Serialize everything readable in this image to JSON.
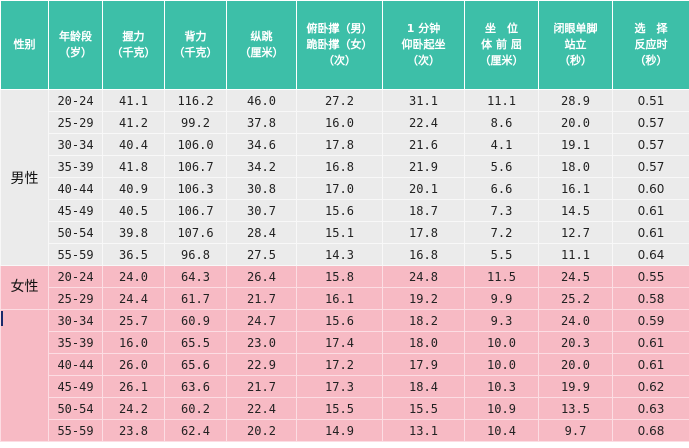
{
  "headers": [
    [
      "性别"
    ],
    [
      "年龄段",
      "（岁）"
    ],
    [
      "握力",
      "（千克）"
    ],
    [
      "背力",
      "（千克）"
    ],
    [
      "纵跳",
      "（厘米）"
    ],
    [
      "俯卧撑（男）",
      "跪卧撑（女）",
      "（次）"
    ],
    [
      "1 分钟",
      "仰卧起坐",
      "（次）"
    ],
    [
      "坐　位",
      "体 前 屈",
      "（厘米）"
    ],
    [
      "闭眼单脚",
      "站立",
      "（秒）"
    ],
    [
      "选　择",
      "反应时",
      "（秒）"
    ]
  ],
  "groups": [
    {
      "label": "男性",
      "rows": [
        [
          "20-24",
          "41.1",
          "116.2",
          "46.0",
          "27.2",
          "31.1",
          "11.1",
          "28.9",
          "0.51"
        ],
        [
          "25-29",
          "41.2",
          "99.2",
          "37.8",
          "16.0",
          "22.4",
          "8.6",
          "20.0",
          "0.57"
        ],
        [
          "30-34",
          "40.4",
          "106.0",
          "34.6",
          "17.8",
          "21.6",
          "4.1",
          "19.1",
          "0.57"
        ],
        [
          "35-39",
          "41.8",
          "106.7",
          "34.2",
          "16.8",
          "21.9",
          "5.6",
          "18.0",
          "0.57"
        ],
        [
          "40-44",
          "40.9",
          "106.3",
          "30.8",
          "17.0",
          "20.1",
          "6.6",
          "16.1",
          "0.60"
        ],
        [
          "45-49",
          "40.5",
          "106.7",
          "30.7",
          "15.6",
          "18.7",
          "7.3",
          "14.5",
          "0.61"
        ],
        [
          "50-54",
          "39.8",
          "107.6",
          "28.4",
          "15.1",
          "17.8",
          "7.2",
          "12.7",
          "0.61"
        ],
        [
          "55-59",
          "36.5",
          "96.8",
          "27.5",
          "14.3",
          "16.8",
          "5.5",
          "11.1",
          "0.64"
        ]
      ]
    },
    {
      "label": "女性",
      "rows": [
        [
          "20-24",
          "24.0",
          "64.3",
          "26.4",
          "15.8",
          "24.8",
          "11.5",
          "24.5",
          "0.55"
        ],
        [
          "25-29",
          "24.4",
          "61.7",
          "21.7",
          "16.1",
          "19.2",
          "9.9",
          "25.2",
          "0.58"
        ],
        [
          "30-34",
          "25.7",
          "60.9",
          "24.7",
          "15.6",
          "18.2",
          "9.3",
          "24.0",
          "0.59"
        ],
        [
          "35-39",
          "16.0",
          "65.5",
          "23.0",
          "17.4",
          "18.0",
          "10.0",
          "20.3",
          "0.61"
        ],
        [
          "40-44",
          "26.0",
          "65.6",
          "22.9",
          "17.2",
          "17.9",
          "10.0",
          "20.0",
          "0.61"
        ],
        [
          "45-49",
          "26.1",
          "63.6",
          "21.7",
          "17.3",
          "18.4",
          "10.3",
          "19.9",
          "0.62"
        ],
        [
          "50-54",
          "24.2",
          "60.2",
          "22.4",
          "15.5",
          "15.5",
          "10.9",
          "13.5",
          "0.63"
        ],
        [
          "55-59",
          "23.8",
          "62.4",
          "20.2",
          "14.9",
          "13.1",
          "10.4",
          "9.7",
          "0.68"
        ]
      ]
    }
  ]
}
